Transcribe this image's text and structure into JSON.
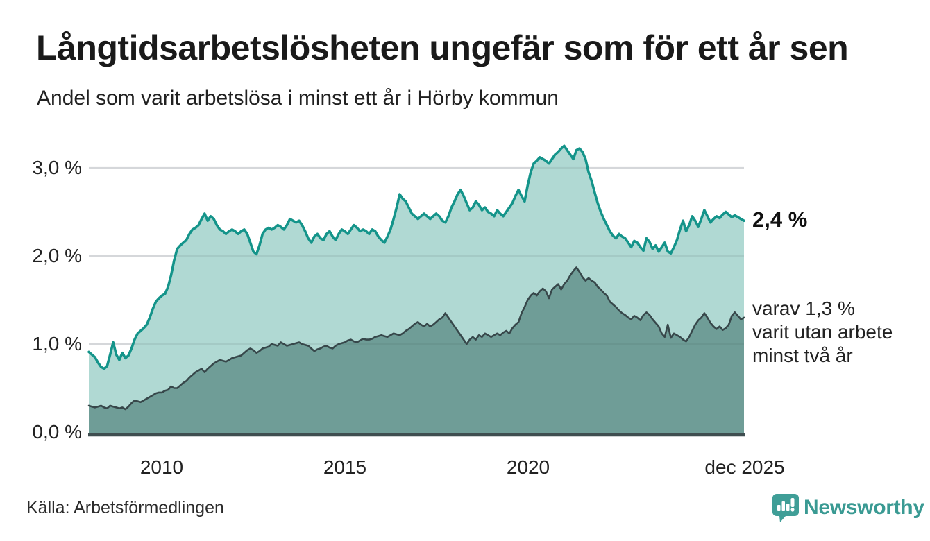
{
  "header": {
    "title": "Långtidsarbetslösheten ungefär som för ett år sen",
    "subtitle": "Andel som varit arbetslösa i minst ett år i Hörby kommun"
  },
  "annotations": {
    "latest_value_label": "2,4 %",
    "secondary_lines": [
      "varav 1,3 %",
      "varit utan arbete",
      "minst två år"
    ]
  },
  "footer": {
    "source": "Källa: Arbetsförmedlingen",
    "brand": "Newsworthy"
  },
  "colors": {
    "line_1plus": "#14948a",
    "fill_1plus": "#b0d9d3",
    "line_2plus": "#37474a",
    "fill_2plus": "#6f9d97",
    "gridline": "#e7e7ea",
    "gridline_overlay": "rgba(60,80,80,0.10)",
    "axis": "#3f4e50",
    "brand_teal": "#3f9e97"
  },
  "chart_data": {
    "type": "area",
    "title": "Långtidsarbetslösheten ungefär som för ett år sen",
    "subtitle": "Andel som varit arbetslösa i minst ett år i Hörby kommun",
    "unit": "percent of workforce",
    "x_start_year": 2008.0,
    "x_end_year": 2025.917,
    "x_step": "monthly",
    "grid": true,
    "legend_position": "right-edge annotations",
    "ylim": [
      0,
      3.4
    ],
    "y_ticks": [
      {
        "label": "0,0 %",
        "value": 0
      },
      {
        "label": "1,0 %",
        "value": 1
      },
      {
        "label": "2,0 %",
        "value": 2
      },
      {
        "label": "3,0 %",
        "value": 3
      }
    ],
    "x_ticks": [
      {
        "label": "2010",
        "year": 2010
      },
      {
        "label": "2015",
        "year": 2015
      },
      {
        "label": "2020",
        "year": 2020
      },
      {
        "label": "dec 2025",
        "year": 2025.917
      }
    ],
    "series": [
      {
        "name": "Andel arbetslösa minst ett år",
        "end_label": "2,4 %",
        "end_value": 2.4,
        "color": "#14948a",
        "fill": "#b0d9d3",
        "values": [
          0.91,
          0.88,
          0.85,
          0.79,
          0.74,
          0.72,
          0.75,
          0.88,
          1.02,
          0.88,
          0.82,
          0.9,
          0.84,
          0.87,
          0.95,
          1.05,
          1.12,
          1.15,
          1.18,
          1.22,
          1.3,
          1.4,
          1.48,
          1.52,
          1.55,
          1.57,
          1.65,
          1.78,
          1.95,
          2.08,
          2.12,
          2.15,
          2.18,
          2.25,
          2.3,
          2.32,
          2.35,
          2.42,
          2.48,
          2.4,
          2.45,
          2.42,
          2.35,
          2.3,
          2.28,
          2.25,
          2.28,
          2.3,
          2.28,
          2.25,
          2.28,
          2.3,
          2.25,
          2.15,
          2.05,
          2.02,
          2.12,
          2.25,
          2.3,
          2.32,
          2.3,
          2.32,
          2.35,
          2.33,
          2.3,
          2.35,
          2.42,
          2.4,
          2.38,
          2.4,
          2.35,
          2.28,
          2.2,
          2.15,
          2.22,
          2.25,
          2.2,
          2.18,
          2.25,
          2.28,
          2.22,
          2.18,
          2.25,
          2.3,
          2.28,
          2.25,
          2.3,
          2.35,
          2.32,
          2.28,
          2.3,
          2.28,
          2.25,
          2.3,
          2.28,
          2.22,
          2.18,
          2.15,
          2.22,
          2.3,
          2.42,
          2.55,
          2.7,
          2.65,
          2.62,
          2.55,
          2.48,
          2.45,
          2.42,
          2.45,
          2.48,
          2.45,
          2.42,
          2.45,
          2.48,
          2.45,
          2.4,
          2.38,
          2.45,
          2.55,
          2.62,
          2.7,
          2.75,
          2.68,
          2.6,
          2.52,
          2.55,
          2.62,
          2.58,
          2.52,
          2.55,
          2.5,
          2.48,
          2.45,
          2.52,
          2.48,
          2.45,
          2.5,
          2.55,
          2.6,
          2.68,
          2.75,
          2.68,
          2.62,
          2.8,
          2.95,
          3.05,
          3.08,
          3.12,
          3.1,
          3.08,
          3.05,
          3.1,
          3.15,
          3.18,
          3.22,
          3.25,
          3.2,
          3.15,
          3.1,
          3.2,
          3.22,
          3.18,
          3.1,
          2.95,
          2.85,
          2.72,
          2.6,
          2.5,
          2.42,
          2.35,
          2.28,
          2.23,
          2.2,
          2.25,
          2.22,
          2.2,
          2.15,
          2.1,
          2.17,
          2.15,
          2.1,
          2.06,
          2.2,
          2.16,
          2.08,
          2.12,
          2.05,
          2.1,
          2.15,
          2.05,
          2.03,
          2.1,
          2.18,
          2.3,
          2.4,
          2.28,
          2.35,
          2.45,
          2.4,
          2.33,
          2.42,
          2.52,
          2.45,
          2.38,
          2.42,
          2.45,
          2.43,
          2.47,
          2.5,
          2.47,
          2.44,
          2.46,
          2.44,
          2.42,
          2.4
        ]
      },
      {
        "name": "varav utan arbete minst två år",
        "end_label": "varav 1,3 % varit utan arbete minst två år",
        "end_value": 1.3,
        "color": "#37474a",
        "fill": "#6f9d97",
        "values": [
          0.3,
          0.29,
          0.28,
          0.29,
          0.3,
          0.28,
          0.27,
          0.3,
          0.29,
          0.28,
          0.27,
          0.28,
          0.26,
          0.29,
          0.33,
          0.36,
          0.35,
          0.34,
          0.36,
          0.38,
          0.4,
          0.42,
          0.44,
          0.45,
          0.45,
          0.47,
          0.48,
          0.52,
          0.5,
          0.5,
          0.53,
          0.56,
          0.58,
          0.62,
          0.65,
          0.68,
          0.7,
          0.72,
          0.68,
          0.72,
          0.75,
          0.78,
          0.8,
          0.82,
          0.81,
          0.8,
          0.82,
          0.84,
          0.85,
          0.86,
          0.87,
          0.9,
          0.93,
          0.95,
          0.93,
          0.9,
          0.92,
          0.95,
          0.96,
          0.97,
          1.0,
          0.99,
          0.98,
          1.02,
          1.0,
          0.98,
          0.99,
          1.0,
          1.01,
          1.02,
          1.0,
          0.99,
          0.98,
          0.95,
          0.92,
          0.94,
          0.95,
          0.97,
          0.98,
          0.96,
          0.95,
          0.98,
          1.0,
          1.01,
          1.02,
          1.04,
          1.05,
          1.03,
          1.02,
          1.04,
          1.06,
          1.05,
          1.05,
          1.06,
          1.08,
          1.09,
          1.1,
          1.09,
          1.08,
          1.1,
          1.12,
          1.11,
          1.1,
          1.12,
          1.15,
          1.17,
          1.2,
          1.23,
          1.25,
          1.22,
          1.2,
          1.23,
          1.2,
          1.22,
          1.25,
          1.28,
          1.3,
          1.35,
          1.3,
          1.25,
          1.2,
          1.15,
          1.1,
          1.05,
          1.0,
          1.05,
          1.08,
          1.05,
          1.1,
          1.08,
          1.12,
          1.1,
          1.08,
          1.1,
          1.12,
          1.1,
          1.13,
          1.15,
          1.12,
          1.18,
          1.22,
          1.25,
          1.35,
          1.42,
          1.5,
          1.55,
          1.58,
          1.55,
          1.6,
          1.63,
          1.6,
          1.52,
          1.62,
          1.65,
          1.68,
          1.62,
          1.68,
          1.72,
          1.78,
          1.83,
          1.87,
          1.82,
          1.76,
          1.72,
          1.75,
          1.72,
          1.7,
          1.65,
          1.62,
          1.58,
          1.55,
          1.48,
          1.45,
          1.42,
          1.38,
          1.35,
          1.33,
          1.3,
          1.28,
          1.32,
          1.3,
          1.27,
          1.33,
          1.36,
          1.33,
          1.28,
          1.24,
          1.2,
          1.12,
          1.08,
          1.22,
          1.07,
          1.12,
          1.1,
          1.08,
          1.05,
          1.03,
          1.08,
          1.15,
          1.22,
          1.27,
          1.3,
          1.35,
          1.3,
          1.24,
          1.2,
          1.17,
          1.2,
          1.16,
          1.18,
          1.22,
          1.32,
          1.36,
          1.32,
          1.28,
          1.3
        ]
      }
    ]
  }
}
